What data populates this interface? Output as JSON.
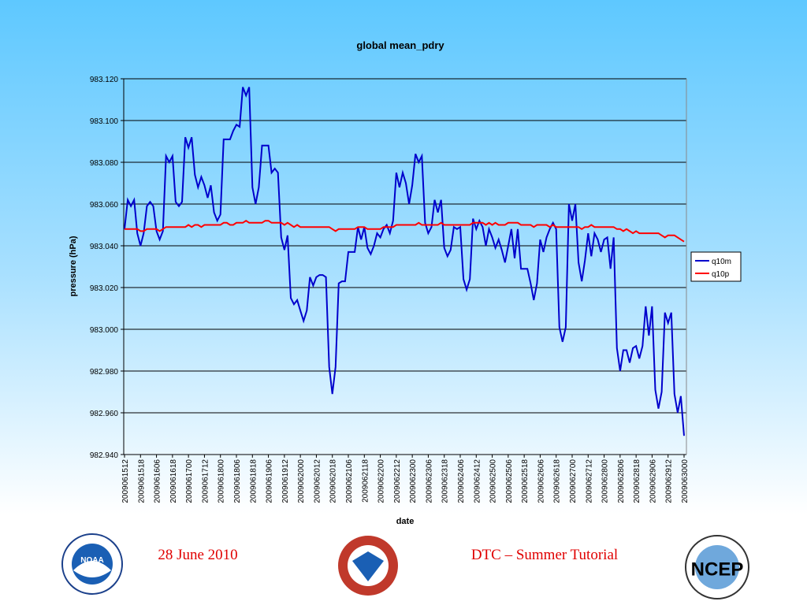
{
  "chart_data": {
    "type": "line",
    "title": "global mean_pdry",
    "x_label": "date",
    "y_label": "pressure (hPa)",
    "categories": [
      "2009061512",
      null,
      null,
      null,
      null,
      "2009061518",
      null,
      null,
      null,
      null,
      "2009061606",
      null,
      null,
      null,
      null,
      "2009061618",
      null,
      null,
      null,
      null,
      "2009061700",
      null,
      null,
      null,
      null,
      "2009061712",
      null,
      null,
      null,
      null,
      "2009061800",
      null,
      null,
      null,
      null,
      "2009061806",
      null,
      null,
      null,
      null,
      "2009061818",
      null,
      null,
      null,
      null,
      "2009061906",
      null,
      null,
      null,
      null,
      "2009061912",
      null,
      null,
      null,
      null,
      "2009062000",
      null,
      null,
      null,
      null,
      "2009062012",
      null,
      null,
      null,
      null,
      "2009062018",
      null,
      null,
      null,
      null,
      "2009062106",
      null,
      null,
      null,
      null,
      "2009062118",
      null,
      null,
      null,
      null,
      "2009062200",
      null,
      null,
      null,
      null,
      "2009062212",
      null,
      null,
      null,
      null,
      "2009062300",
      null,
      null,
      null,
      null,
      "2009062306",
      null,
      null,
      null,
      null,
      "2009062318",
      null,
      null,
      null,
      null,
      "2009062406",
      null,
      null,
      null,
      null,
      "2009062412",
      null,
      null,
      null,
      null,
      "2009062500",
      null,
      null,
      null,
      null,
      "2009062506",
      null,
      null,
      null,
      null,
      "2009062518",
      null,
      null,
      null,
      null,
      "2009062606",
      null,
      null,
      null,
      null,
      "2009062618",
      null,
      null,
      null,
      null,
      "2009062700",
      null,
      null,
      null,
      null,
      "2009062712",
      null,
      null,
      null,
      null,
      "2009062800",
      null,
      null,
      null,
      null,
      "2009062806",
      null,
      null,
      null,
      null,
      "2009062818",
      null,
      null,
      null,
      null,
      "2009062906",
      null,
      null,
      null,
      null,
      "2009062912",
      null,
      null,
      null,
      null,
      "2009063000"
    ],
    "series": [
      {
        "name": "q10m",
        "color": "#0000cc",
        "values": [
          983.048,
          983.062,
          983.059,
          983.062,
          983.046,
          983.04,
          983.046,
          983.059,
          983.061,
          983.059,
          983.047,
          983.043,
          983.047,
          983.083,
          983.08,
          983.083,
          983.061,
          983.059,
          983.061,
          983.092,
          983.087,
          983.092,
          983.074,
          983.068,
          983.073,
          983.069,
          983.063,
          983.069,
          983.056,
          983.052,
          983.055,
          983.091,
          983.091,
          983.091,
          983.095,
          983.098,
          983.097,
          983.116,
          983.112,
          983.116,
          983.068,
          983.06,
          983.068,
          983.088,
          983.088,
          983.088,
          983.075,
          983.077,
          983.075,
          983.044,
          983.038,
          983.045,
          983.015,
          983.012,
          983.014,
          983.009,
          983.004,
          983.009,
          983.025,
          983.021,
          983.025,
          983.026,
          983.026,
          983.025,
          982.982,
          982.969,
          982.982,
          983.022,
          983.023,
          983.023,
          983.037,
          983.037,
          983.037,
          983.049,
          983.043,
          983.049,
          983.039,
          983.036,
          983.04,
          983.046,
          983.044,
          983.048,
          983.05,
          983.046,
          983.052,
          983.075,
          983.068,
          983.075,
          983.07,
          983.06,
          983.069,
          983.084,
          983.08,
          983.083,
          983.051,
          983.046,
          983.049,
          983.062,
          983.056,
          983.062,
          983.039,
          983.035,
          983.038,
          983.049,
          983.048,
          983.049,
          983.024,
          983.019,
          983.024,
          983.053,
          983.048,
          983.052,
          983.049,
          983.04,
          983.048,
          983.044,
          983.039,
          983.043,
          983.038,
          983.032,
          983.04,
          983.048,
          983.034,
          983.048,
          983.029,
          983.029,
          983.029,
          983.022,
          983.014,
          983.022,
          983.043,
          983.037,
          983.044,
          983.048,
          983.051,
          983.048,
          983.001,
          982.994,
          983.001,
          983.06,
          983.052,
          983.06,
          983.032,
          983.023,
          983.033,
          983.046,
          983.035,
          983.046,
          983.043,
          983.037,
          983.043,
          983.044,
          983.029,
          983.044,
          982.991,
          982.98,
          982.99,
          982.99,
          982.984,
          982.991,
          982.992,
          982.986,
          982.992,
          983.011,
          982.997,
          983.011,
          982.971,
          982.962,
          982.97,
          983.008,
          983.003,
          983.008,
          982.969,
          982.96,
          982.968,
          982.949
        ]
      },
      {
        "name": "q10p",
        "color": "#ff0000",
        "values": [
          983.048,
          983.048,
          983.048,
          983.048,
          983.048,
          983.047,
          983.047,
          983.048,
          983.048,
          983.048,
          983.048,
          983.047,
          983.048,
          983.049,
          983.049,
          983.049,
          983.049,
          983.049,
          983.049,
          983.049,
          983.05,
          983.049,
          983.05,
          983.05,
          983.049,
          983.05,
          983.05,
          983.05,
          983.05,
          983.05,
          983.05,
          983.051,
          983.051,
          983.05,
          983.05,
          983.051,
          983.051,
          983.051,
          983.052,
          983.051,
          983.051,
          983.051,
          983.051,
          983.051,
          983.052,
          983.052,
          983.051,
          983.051,
          983.051,
          983.051,
          983.05,
          983.051,
          983.05,
          983.049,
          983.05,
          983.049,
          983.049,
          983.049,
          983.049,
          983.049,
          983.049,
          983.049,
          983.049,
          983.049,
          983.049,
          983.048,
          983.047,
          983.048,
          983.048,
          983.048,
          983.048,
          983.048,
          983.048,
          983.049,
          983.049,
          983.049,
          983.048,
          983.048,
          983.048,
          983.048,
          983.048,
          983.049,
          983.049,
          983.049,
          983.049,
          983.05,
          983.05,
          983.05,
          983.05,
          983.05,
          983.05,
          983.05,
          983.051,
          983.05,
          983.05,
          983.05,
          983.05,
          983.05,
          983.05,
          983.051,
          983.05,
          983.05,
          983.05,
          983.05,
          983.05,
          983.05,
          983.05,
          983.05,
          983.05,
          983.051,
          983.051,
          983.051,
          983.051,
          983.05,
          983.051,
          983.05,
          983.051,
          983.05,
          983.05,
          983.05,
          983.051,
          983.051,
          983.051,
          983.051,
          983.05,
          983.05,
          983.05,
          983.05,
          983.049,
          983.05,
          983.05,
          983.05,
          983.05,
          983.049,
          983.05,
          983.049,
          983.049,
          983.049,
          983.049,
          983.049,
          983.049,
          983.049,
          983.049,
          983.048,
          983.049,
          983.049,
          983.05,
          983.049,
          983.049,
          983.049,
          983.049,
          983.049,
          983.049,
          983.049,
          983.048,
          983.048,
          983.047,
          983.048,
          983.047,
          983.046,
          983.047,
          983.046,
          983.046,
          983.046,
          983.046,
          983.046,
          983.046,
          983.046,
          983.045,
          983.044,
          983.045,
          983.045,
          983.045,
          983.044,
          983.043,
          983.042
        ]
      }
    ],
    "ylim": [
      982.94,
      983.12
    ],
    "yticks": [
      {
        "value": 982.94,
        "label": "982.940"
      },
      {
        "value": 982.96,
        "label": "982.960"
      },
      {
        "value": 982.98,
        "label": "982.980"
      },
      {
        "value": 983.0,
        "label": "983.000"
      },
      {
        "value": 983.02,
        "label": "983.020"
      },
      {
        "value": 983.04,
        "label": "983.040"
      },
      {
        "value": 983.06,
        "label": "983.060"
      },
      {
        "value": 983.08,
        "label": "983.080"
      },
      {
        "value": 983.1,
        "label": "983.100"
      },
      {
        "value": 983.12,
        "label": "983.120"
      }
    ],
    "grid": true,
    "legend": "right"
  },
  "footer": {
    "date": "28 June 2010",
    "event": "DTC – Summer Tutorial",
    "logos": [
      "NOAA",
      "NCEP"
    ]
  }
}
